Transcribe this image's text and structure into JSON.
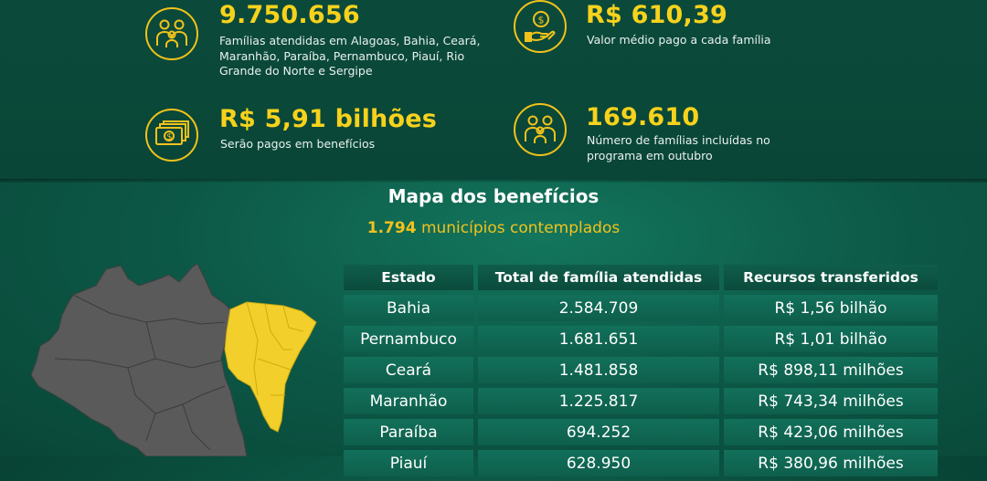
{
  "stats": [
    {
      "value": "9.750.656",
      "desc": "Famílias atendidas em Alagoas, Bahia, Ceará, Maranhão, Paraíba, Pernambuco, Piauí, Rio Grande do Norte e Sergipe",
      "icon": "family-icon"
    },
    {
      "value": "R$ 610,39",
      "desc": "Valor médio pago a cada família",
      "icon": "money-hand-icon"
    },
    {
      "value": "R$ 5,91 bilhões",
      "desc": "Serão pagos em benefícios",
      "icon": "banknote-stack-icon"
    },
    {
      "value": "169.610",
      "desc": "Número de famílias incluídas no programa em outubro",
      "icon": "family-icon"
    }
  ],
  "map_section": {
    "title": "Mapa dos benefícios",
    "subtitle_number": "1.794",
    "subtitle_text": " municípios contemplados"
  },
  "table": {
    "headers": [
      "Estado",
      "Total de família atendidas",
      "Recursos transferidos"
    ],
    "rows": [
      [
        "Bahia",
        "2.584.709",
        "R$ 1,56 bilhão"
      ],
      [
        "Pernambuco",
        "1.681.651",
        "R$ 1,01 bilhão"
      ],
      [
        "Ceará",
        "1.481.858",
        "R$ 898,11 milhões"
      ],
      [
        "Maranhão",
        "1.225.817",
        "R$ 743,34 milhões"
      ],
      [
        "Paraíba",
        "694.252",
        "R$ 423,06 milhões"
      ],
      [
        "Piauí",
        "628.950",
        "R$ 380,96 milhões"
      ]
    ]
  },
  "colors": {
    "accent": "#f2c21b",
    "background": "#0a4d3d",
    "map_gray": "#5b5b5b",
    "map_highlight": "#f2cf2a"
  }
}
